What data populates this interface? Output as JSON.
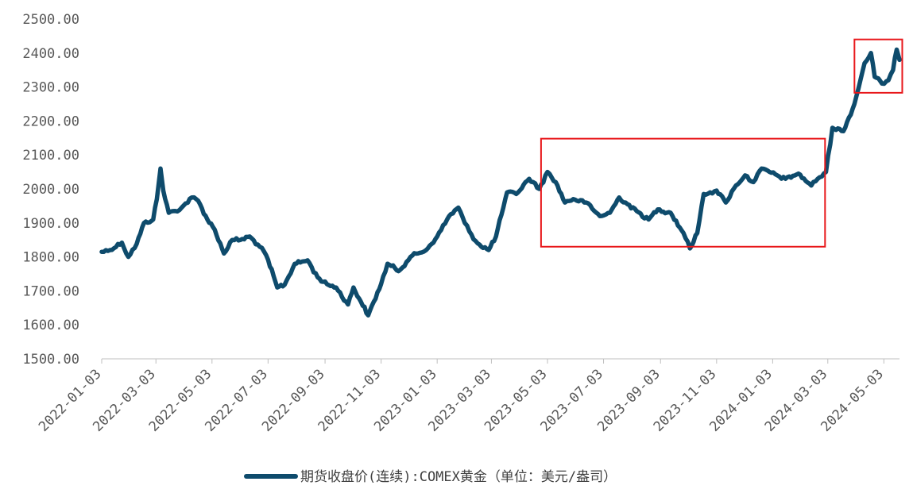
{
  "chart_data": {
    "type": "line",
    "title": "",
    "xlabel": "",
    "ylabel": "",
    "ylim": [
      1500,
      2500
    ],
    "yticks": [
      "1500.00",
      "1600.00",
      "1700.00",
      "1800.00",
      "1900.00",
      "2000.00",
      "2100.00",
      "2200.00",
      "2300.00",
      "2400.00",
      "2500.00"
    ],
    "xticks": [
      "2022-01-03",
      "2022-03-03",
      "2022-05-03",
      "2022-07-03",
      "2022-09-03",
      "2022-11-03",
      "2023-01-03",
      "2023-03-03",
      "2023-05-03",
      "2023-07-03",
      "2023-09-03",
      "2023-11-03",
      "2024-01-03",
      "2024-03-03",
      "2024-05-03"
    ],
    "xlim": [
      "2022-01-03",
      "2024-05-20"
    ],
    "grid": false,
    "legend_position": "bottom-center",
    "series": [
      {
        "name": "期货收盘价(连续):COMEX黄金（单位：美元/盎司）",
        "color": "#0e4b6c",
        "x": [
          "2022-01-03",
          "2022-01-12",
          "2022-01-25",
          "2022-02-01",
          "2022-02-10",
          "2022-02-18",
          "2022-02-28",
          "2022-03-04",
          "2022-03-08",
          "2022-03-11",
          "2022-03-17",
          "2022-03-24",
          "2022-03-31",
          "2022-04-11",
          "2022-04-18",
          "2022-04-28",
          "2022-05-06",
          "2022-05-16",
          "2022-05-25",
          "2022-06-03",
          "2022-06-13",
          "2022-06-24",
          "2022-07-01",
          "2022-07-13",
          "2022-07-21",
          "2022-08-01",
          "2022-08-15",
          "2022-08-26",
          "2022-09-05",
          "2022-09-15",
          "2022-09-28",
          "2022-10-04",
          "2022-10-12",
          "2022-10-20",
          "2022-11-03",
          "2022-11-10",
          "2022-11-22",
          "2022-12-05",
          "2022-12-13",
          "2022-12-22",
          "2023-01-03",
          "2023-01-16",
          "2023-01-26",
          "2023-02-02",
          "2023-02-07",
          "2023-02-16",
          "2023-02-28",
          "2023-03-08",
          "2023-03-14",
          "2023-03-20",
          "2023-03-30",
          "2023-04-13",
          "2023-04-24",
          "2023-05-03",
          "2023-05-12",
          "2023-05-22",
          "2023-05-31",
          "2023-06-14",
          "2023-06-23",
          "2023-06-29",
          "2023-07-10",
          "2023-07-20",
          "2023-07-27",
          "2023-08-08",
          "2023-08-21",
          "2023-08-31",
          "2023-09-14",
          "2023-09-28",
          "2023-10-05",
          "2023-10-13",
          "2023-10-20",
          "2023-10-27",
          "2023-11-03",
          "2023-11-13",
          "2023-11-24",
          "2023-12-04",
          "2023-12-13",
          "2023-12-22",
          "2024-01-08",
          "2024-01-17",
          "2024-01-31",
          "2024-02-14",
          "2024-02-21",
          "2024-03-01",
          "2024-03-08",
          "2024-03-20",
          "2024-04-01",
          "2024-04-12",
          "2024-04-19",
          "2024-04-23",
          "2024-05-01",
          "2024-05-08",
          "2024-05-13",
          "2024-05-17",
          "2024-05-20"
        ],
        "values": [
          1815,
          1820,
          1842,
          1800,
          1838,
          1900,
          1910,
          1970,
          2060,
          1995,
          1930,
          1935,
          1945,
          1975,
          1965,
          1910,
          1880,
          1810,
          1850,
          1850,
          1860,
          1830,
          1805,
          1710,
          1718,
          1780,
          1790,
          1740,
          1720,
          1710,
          1660,
          1710,
          1668,
          1628,
          1720,
          1780,
          1758,
          1800,
          1810,
          1820,
          1860,
          1920,
          1945,
          1900,
          1875,
          1840,
          1820,
          1860,
          1925,
          1990,
          1985,
          2030,
          2000,
          2050,
          2020,
          1960,
          1970,
          1960,
          1935,
          1920,
          1930,
          1975,
          1960,
          1935,
          1910,
          1940,
          1930,
          1870,
          1825,
          1870,
          1985,
          1990,
          1995,
          1960,
          2010,
          2040,
          2020,
          2060,
          2040,
          2030,
          2045,
          2010,
          2030,
          2050,
          2180,
          2170,
          2250,
          2370,
          2400,
          2330,
          2310,
          2320,
          2350,
          2410,
          2380
        ]
      }
    ],
    "annotations": [
      {
        "kind": "rectangle",
        "x_from": "2023-04-26",
        "x_to": "2024-02-29",
        "y_from": 1830,
        "y_to": 2148,
        "color": "#e8181b"
      },
      {
        "kind": "rectangle",
        "x_from": "2024-04-01",
        "x_to": "2024-05-23",
        "y_from": 2283,
        "y_to": 2440,
        "color": "#e8181b"
      }
    ]
  }
}
